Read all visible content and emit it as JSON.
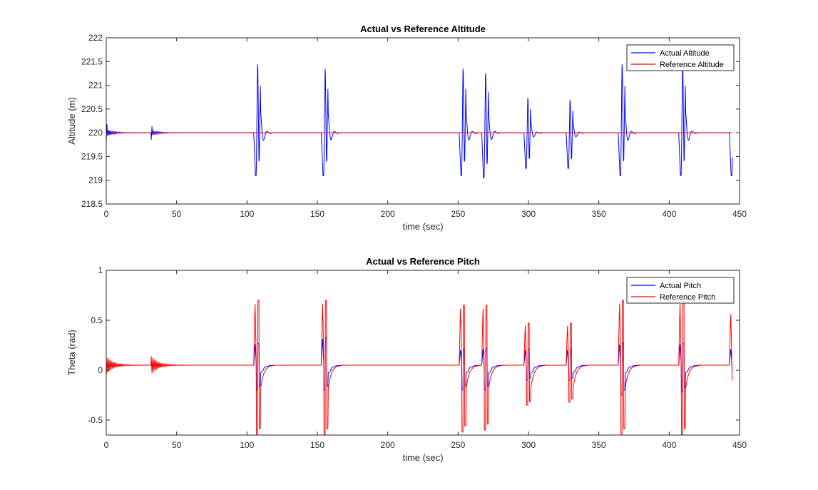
{
  "figure": {
    "background": "#ffffff",
    "axes_color": "#262626"
  },
  "chart_data": [
    {
      "type": "line",
      "title": "Actual vs Reference Altitude",
      "xlabel": "time (sec)",
      "ylabel": "Altitude (m)",
      "xlim": [
        0,
        450
      ],
      "ylim": [
        218.5,
        222
      ],
      "x_ticks": [
        "0",
        "50",
        "100",
        "150",
        "200",
        "250",
        "300",
        "350",
        "400",
        "450"
      ],
      "y_ticks": [
        "218.5",
        "219",
        "219.5",
        "220",
        "220.5",
        "221",
        "221.5",
        "222"
      ],
      "grid": false,
      "legend_position": "top-right",
      "baseline": 220,
      "series": [
        {
          "name": "Actual Altitude",
          "color": "#0000ff",
          "role": "actual"
        },
        {
          "name": "Reference Altitude",
          "color": "#ff0000",
          "role": "reference"
        }
      ],
      "disturbances": [
        {
          "t": 106,
          "low": 219.1,
          "high": 221.7
        },
        {
          "t": 154,
          "low": 219.1,
          "high": 221.6
        },
        {
          "t": 252,
          "low": 219.1,
          "high": 221.6
        },
        {
          "t": 268,
          "low": 219.05,
          "high": 221.5
        },
        {
          "t": 298,
          "low": 219.25,
          "high": 220.9
        },
        {
          "t": 328,
          "low": 219.25,
          "high": 220.85
        },
        {
          "t": 365,
          "low": 219.1,
          "high": 221.7
        },
        {
          "t": 408,
          "low": 219.1,
          "high": 221.7
        },
        {
          "t": 444,
          "low": 219.1,
          "high": 220.05
        }
      ],
      "startup_transients": [
        {
          "t": 0,
          "amplitude": 0.2
        },
        {
          "t": 32,
          "amplitude": 0.15
        }
      ]
    },
    {
      "type": "line",
      "title": "Actual vs Reference Pitch",
      "xlabel": "time (sec)",
      "ylabel": "Theta (rad)",
      "xlim": [
        0,
        450
      ],
      "ylim": [
        -0.65,
        1
      ],
      "x_ticks": [
        "0",
        "50",
        "100",
        "150",
        "200",
        "250",
        "300",
        "350",
        "400",
        "450"
      ],
      "y_ticks": [
        "-0.5",
        "0",
        "0.5",
        "1"
      ],
      "grid": false,
      "legend_position": "top-right",
      "baseline": 0.05,
      "series": [
        {
          "name": "Actual Pitch",
          "color": "#0000ff",
          "role": "actual"
        },
        {
          "name": "Reference Pitch",
          "color": "#ff0000",
          "role": "reference"
        }
      ],
      "disturbances": [
        {
          "t": 106,
          "ref_low": -0.65,
          "ref_high": 0.7,
          "act_low": -0.2,
          "act_high": 0.27
        },
        {
          "t": 154,
          "ref_low": -0.65,
          "ref_high": 0.7,
          "act_low": -0.2,
          "act_high": 0.33
        },
        {
          "t": 252,
          "ref_low": -0.62,
          "ref_high": 0.65,
          "act_low": -0.2,
          "act_high": 0.21
        },
        {
          "t": 268,
          "ref_low": -0.6,
          "ref_high": 0.65,
          "act_low": -0.2,
          "act_high": 0.22
        },
        {
          "t": 298,
          "ref_low": -0.35,
          "ref_high": 0.47,
          "act_low": -0.1,
          "act_high": 0.21
        },
        {
          "t": 328,
          "ref_low": -0.32,
          "ref_high": 0.47,
          "act_low": -0.1,
          "act_high": 0.21
        },
        {
          "t": 365,
          "ref_low": -0.65,
          "ref_high": 0.7,
          "act_low": -0.25,
          "act_high": 0.27
        },
        {
          "t": 408,
          "ref_low": -0.65,
          "ref_high": 0.7,
          "act_low": -0.22,
          "act_high": 0.27
        },
        {
          "t": 444,
          "ref_low": -0.1,
          "ref_high": 0.59,
          "act_low": 0.0,
          "act_high": 0.22
        }
      ],
      "startup_transients": [
        {
          "t": 0,
          "amplitude": 0.1
        },
        {
          "t": 32,
          "amplitude": 0.1
        }
      ]
    }
  ]
}
